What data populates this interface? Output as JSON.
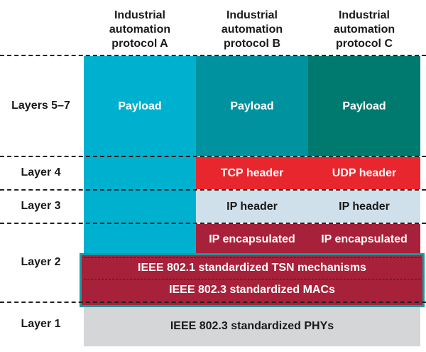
{
  "columns": [
    {
      "title_lines": [
        "Industrial",
        "automation",
        "protocol A"
      ]
    },
    {
      "title_lines": [
        "Industrial",
        "automation",
        "protocol B"
      ]
    },
    {
      "title_lines": [
        "Industrial",
        "automation",
        "protocol C"
      ]
    }
  ],
  "layers": {
    "l57": "Layers 5–7",
    "l4": "Layer 4",
    "l3": "Layer 3",
    "l2": "Layer 2",
    "l1": "Layer 1"
  },
  "cells": {
    "payload_a": "Payload",
    "payload_b": "Payload",
    "payload_c": "Payload",
    "tcp": "TCP header",
    "udp": "UDP header",
    "ip_b": "IP header",
    "ip_c": "IP header",
    "enc_b": "IP encapsulated",
    "enc_c": "IP encapsulated",
    "tsn": "IEEE 802.1 standardized TSN mechanisms",
    "mac": "IEEE 802.3 standardized MACs",
    "phy": "IEEE 802.3 standardized PHYs"
  },
  "colors": {
    "protocol_a": "#00b0cf",
    "protocol_b": "#00929f",
    "protocol_c": "#007a6e",
    "layer4": "#e8262e",
    "layer3": "#cfe0ea",
    "layer2": "#a8213a",
    "layer1": "#d4d6d8",
    "highlight_border": "#1a9aa0"
  }
}
